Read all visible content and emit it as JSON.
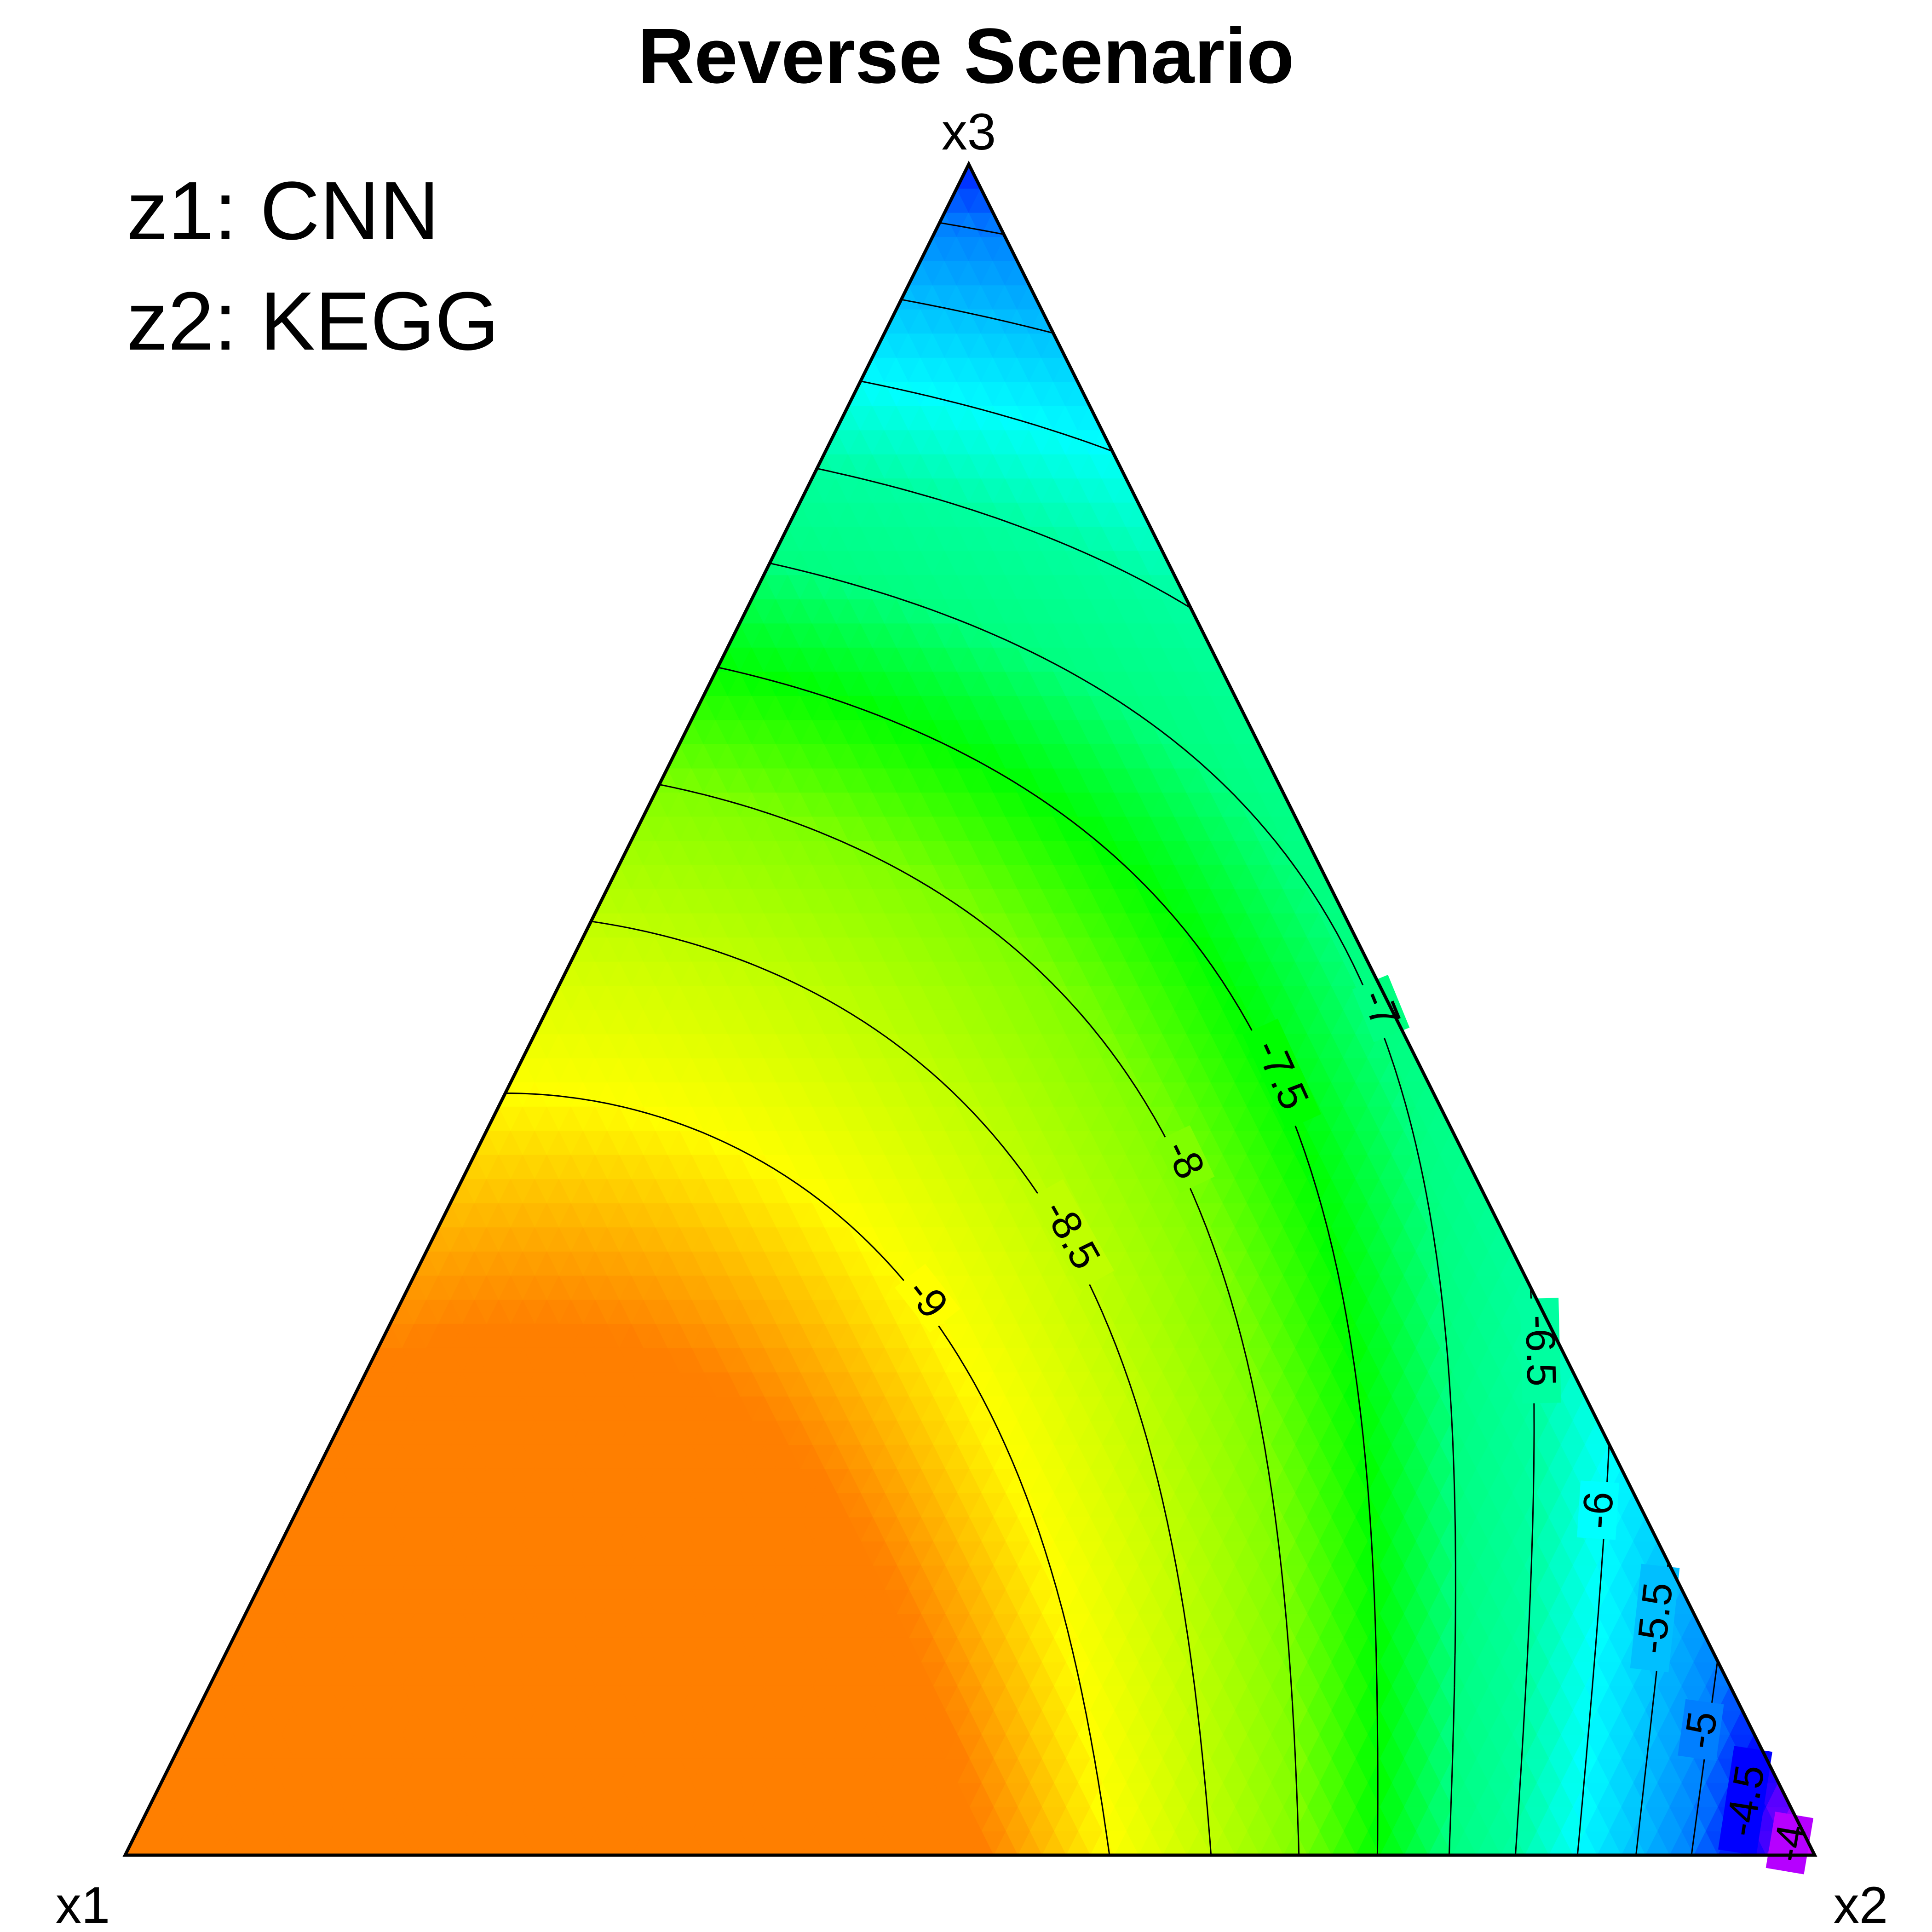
{
  "chart_data": {
    "type": "ternary contour",
    "title": "Reverse Scenario",
    "vertices": {
      "x1": "x1",
      "x2": "x2",
      "x3": "x3"
    },
    "legend": {
      "lines": [
        "z1: CNN",
        "z2: KEGG"
      ],
      "placement": "top-left"
    },
    "color_scale": {
      "min": -9.5,
      "max": -3.8,
      "stops": [
        [
          -9.5,
          "#ff7f00"
        ],
        [
          -9.0,
          "#ffff00"
        ],
        [
          -8.0,
          "#7fff00"
        ],
        [
          -7.5,
          "#00ff00"
        ],
        [
          -7.0,
          "#00ff7f"
        ],
        [
          -6.5,
          "#00ffa0"
        ],
        [
          -6.0,
          "#00ffff"
        ],
        [
          -5.0,
          "#007fff"
        ],
        [
          -4.5,
          "#0000ff"
        ],
        [
          -3.8,
          "#ff00ff"
        ]
      ]
    },
    "contours": [
      {
        "level": -9,
        "label": "-9"
      },
      {
        "level": -8.5,
        "label": "-8.5"
      },
      {
        "level": -8,
        "label": "-8"
      },
      {
        "level": -7.5,
        "label": "-7.5"
      },
      {
        "level": -7,
        "label": "-7"
      },
      {
        "level": -6.5,
        "label": "-6.5"
      },
      {
        "level": -6,
        "label": "-6"
      },
      {
        "level": -5.5,
        "label": "-5.5"
      },
      {
        "level": -5,
        "label": "-5"
      },
      {
        "level": -4.5,
        "label": "-4.5"
      },
      {
        "level": -4,
        "label": "-4"
      }
    ],
    "vertex_values": {
      "x1": -9.5,
      "x2": -3.8,
      "x3": -4.6
    },
    "grid": false
  }
}
